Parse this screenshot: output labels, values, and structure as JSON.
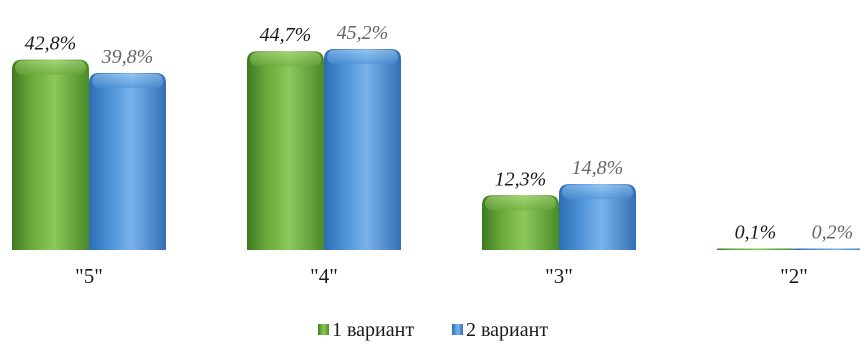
{
  "chart_data": {
    "type": "bar",
    "categories": [
      "\"5\"",
      "\"4\"",
      "\"3\"",
      "\"2\""
    ],
    "series": [
      {
        "name": "1 вариант",
        "values": [
          42.8,
          44.7,
          12.3,
          0.1
        ],
        "labels": [
          "42,8%",
          "44,7%",
          "12,3%",
          "0,1%"
        ],
        "color": "#6aa83a"
      },
      {
        "name": "2 вариант",
        "values": [
          39.8,
          45.2,
          14.8,
          0.2
        ],
        "labels": [
          "39,8%",
          "45,2%",
          "14,8%",
          "0,2%"
        ],
        "color": "#4a8fd4"
      }
    ],
    "ylim": [
      0,
      45.2
    ],
    "grid": false,
    "legend": "bottom-center",
    "label_colors": [
      "#1a1a1a",
      "#666666"
    ]
  }
}
